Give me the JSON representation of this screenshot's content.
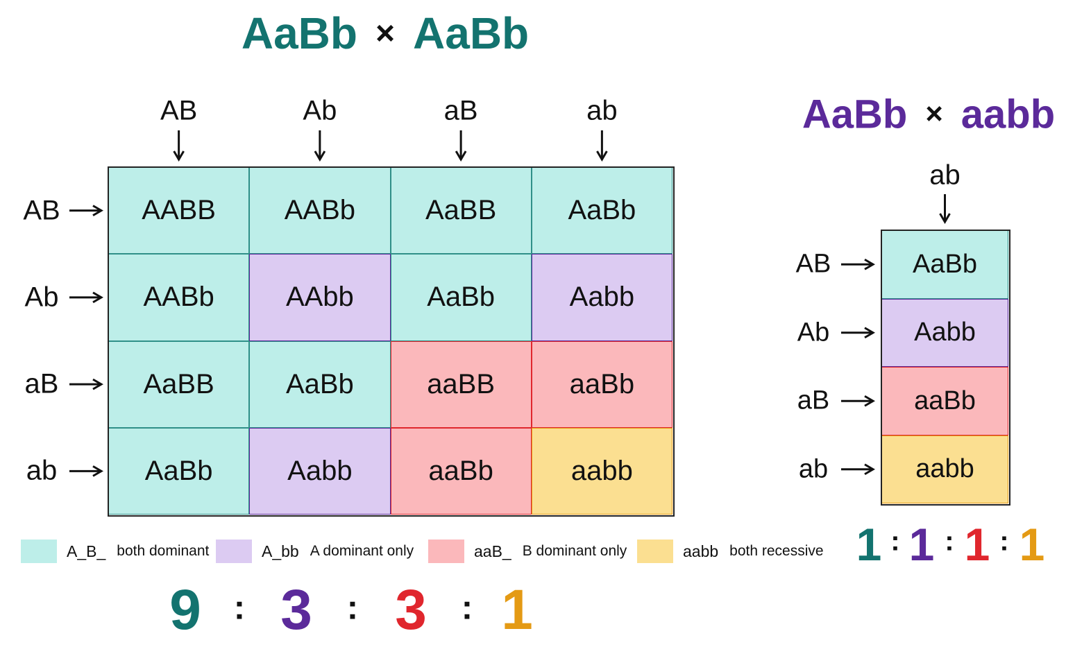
{
  "dihybrid": {
    "title": {
      "parent1": "AaBb",
      "times": "×",
      "parent2": "AaBb",
      "color": "#13736f"
    },
    "col_gametes": [
      "AB",
      "Ab",
      "aB",
      "ab"
    ],
    "row_gametes": [
      "AB",
      "Ab",
      "aB",
      "ab"
    ],
    "cells": [
      [
        "AABB",
        "AABb",
        "AaBB",
        "AaBb"
      ],
      [
        "AABb",
        "AAbb",
        "AaBb",
        "Aabb"
      ],
      [
        "AaBB",
        "AaBb",
        "aaBB",
        "aaBb"
      ],
      [
        "AaBb",
        "Aabb",
        "aaBb",
        "aabb"
      ]
    ],
    "ratio": [
      9,
      3,
      3,
      1
    ],
    "ratio_separator": ":"
  },
  "test_cross": {
    "title": {
      "parent1": "AaBb",
      "times": "×",
      "parent2": "aabb",
      "color": "#5b2a9a"
    },
    "col_gametes": [
      "ab"
    ],
    "row_gametes": [
      "AB",
      "Ab",
      "aB",
      "ab"
    ],
    "cells": [
      "AaBb",
      "Aabb",
      "aaBb",
      "aabb"
    ],
    "ratio": [
      1,
      1,
      1,
      1
    ],
    "ratio_separator": ":"
  },
  "legend": [
    {
      "key": "A_B_",
      "desc": "both dominant",
      "color": "#bdeee9",
      "border": "#2f8f88",
      "text_color": "#13736f"
    },
    {
      "key": "A_bb",
      "desc": "A dominant only",
      "color": "#dccbf2",
      "border": "#5b2a9a",
      "text_color": "#5b2a9a"
    },
    {
      "key": "aaB_",
      "desc": "B dominant only",
      "color": "#fbb8bb",
      "border": "#e0262d",
      "text_color": "#e0262d"
    },
    {
      "key": "aabb",
      "desc": "both recessive",
      "color": "#fbdf91",
      "border": "#e49a14",
      "text_color": "#e49a14"
    }
  ]
}
